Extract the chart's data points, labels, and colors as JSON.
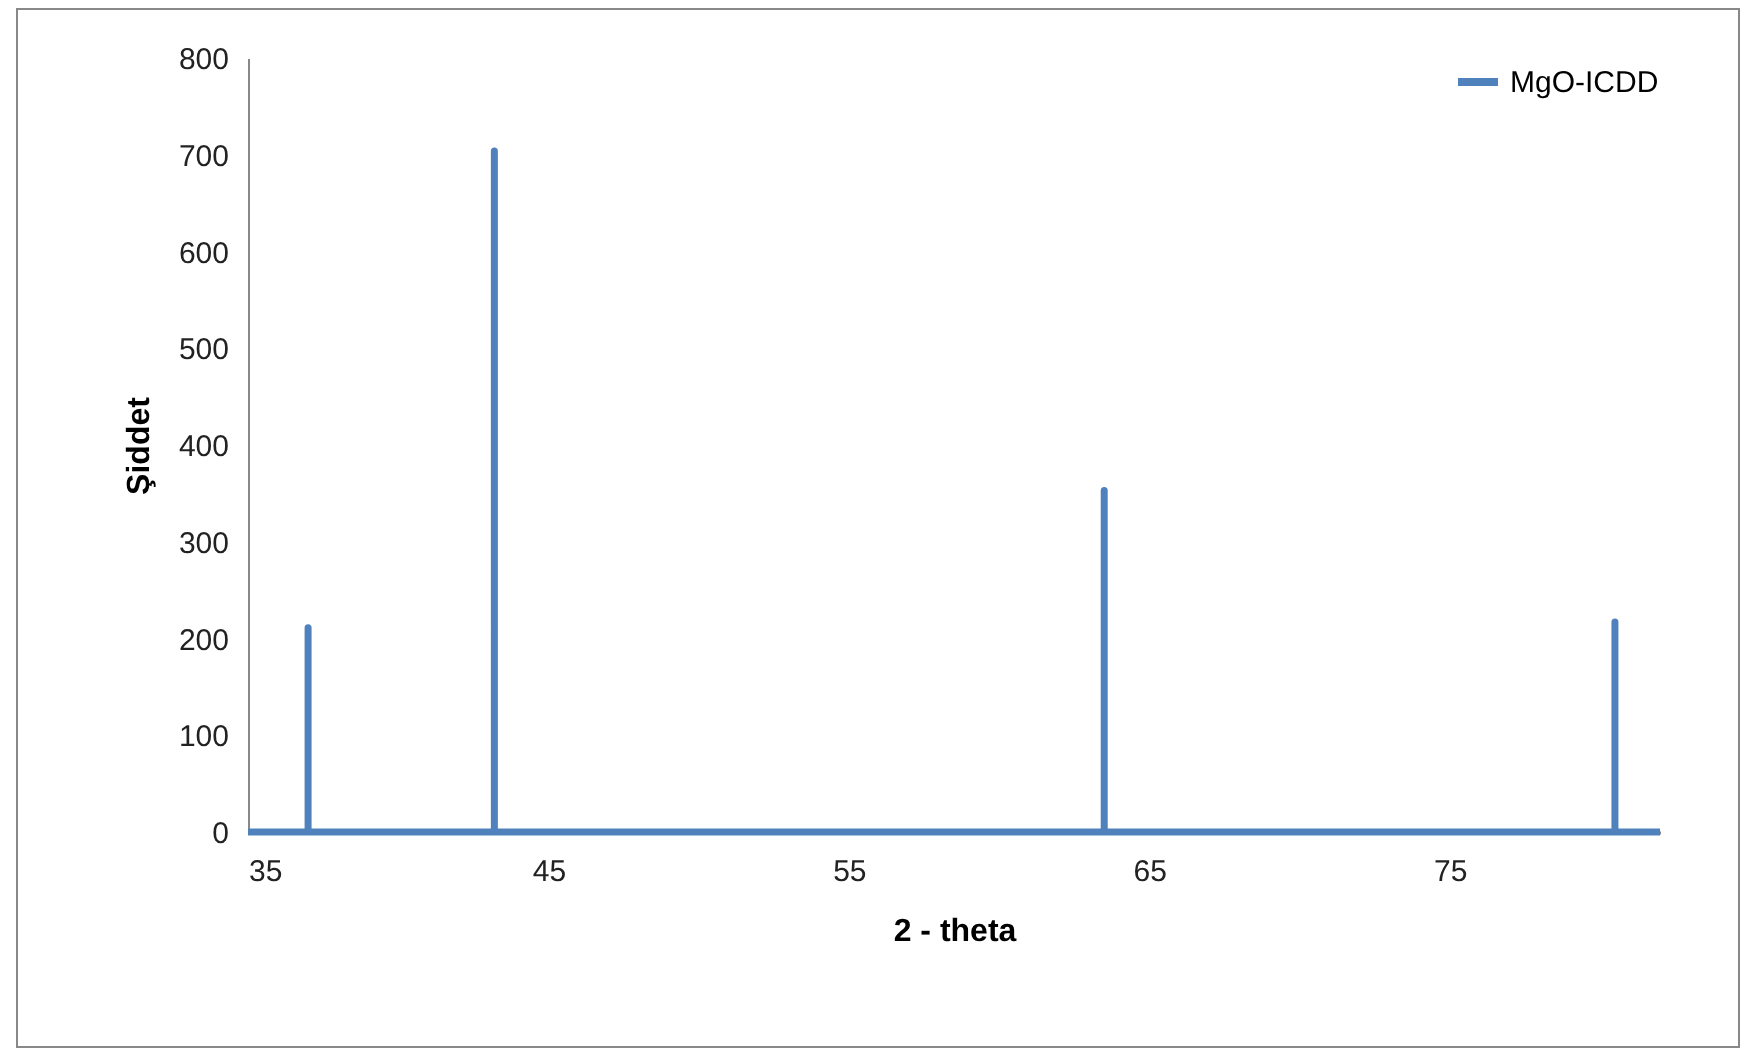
{
  "chart_data": {
    "type": "line",
    "xlabel": "2 - theta",
    "ylabel": "Şiddet",
    "x": [
      35,
      37,
      37,
      37,
      43.2,
      43.2,
      43.2,
      63.5,
      63.5,
      63.5,
      80.5,
      80.5,
      80.5,
      82
    ],
    "series": [
      {
        "name": "MgO-ICDD",
        "color": "#4f81bd",
        "values": [
          0,
          0,
          211,
          0,
          0,
          704,
          0,
          0,
          353,
          0,
          0,
          217,
          0,
          0
        ]
      }
    ],
    "xlim": [
      35,
      82
    ],
    "xticks": [
      35,
      45,
      55,
      65,
      75
    ],
    "ylim": [
      0,
      800
    ],
    "yticks": [
      0,
      100,
      200,
      300,
      400,
      500,
      600,
      700,
      800
    ],
    "grid": false,
    "legend": "top right",
    "line_style": "solid",
    "marker": "none"
  }
}
